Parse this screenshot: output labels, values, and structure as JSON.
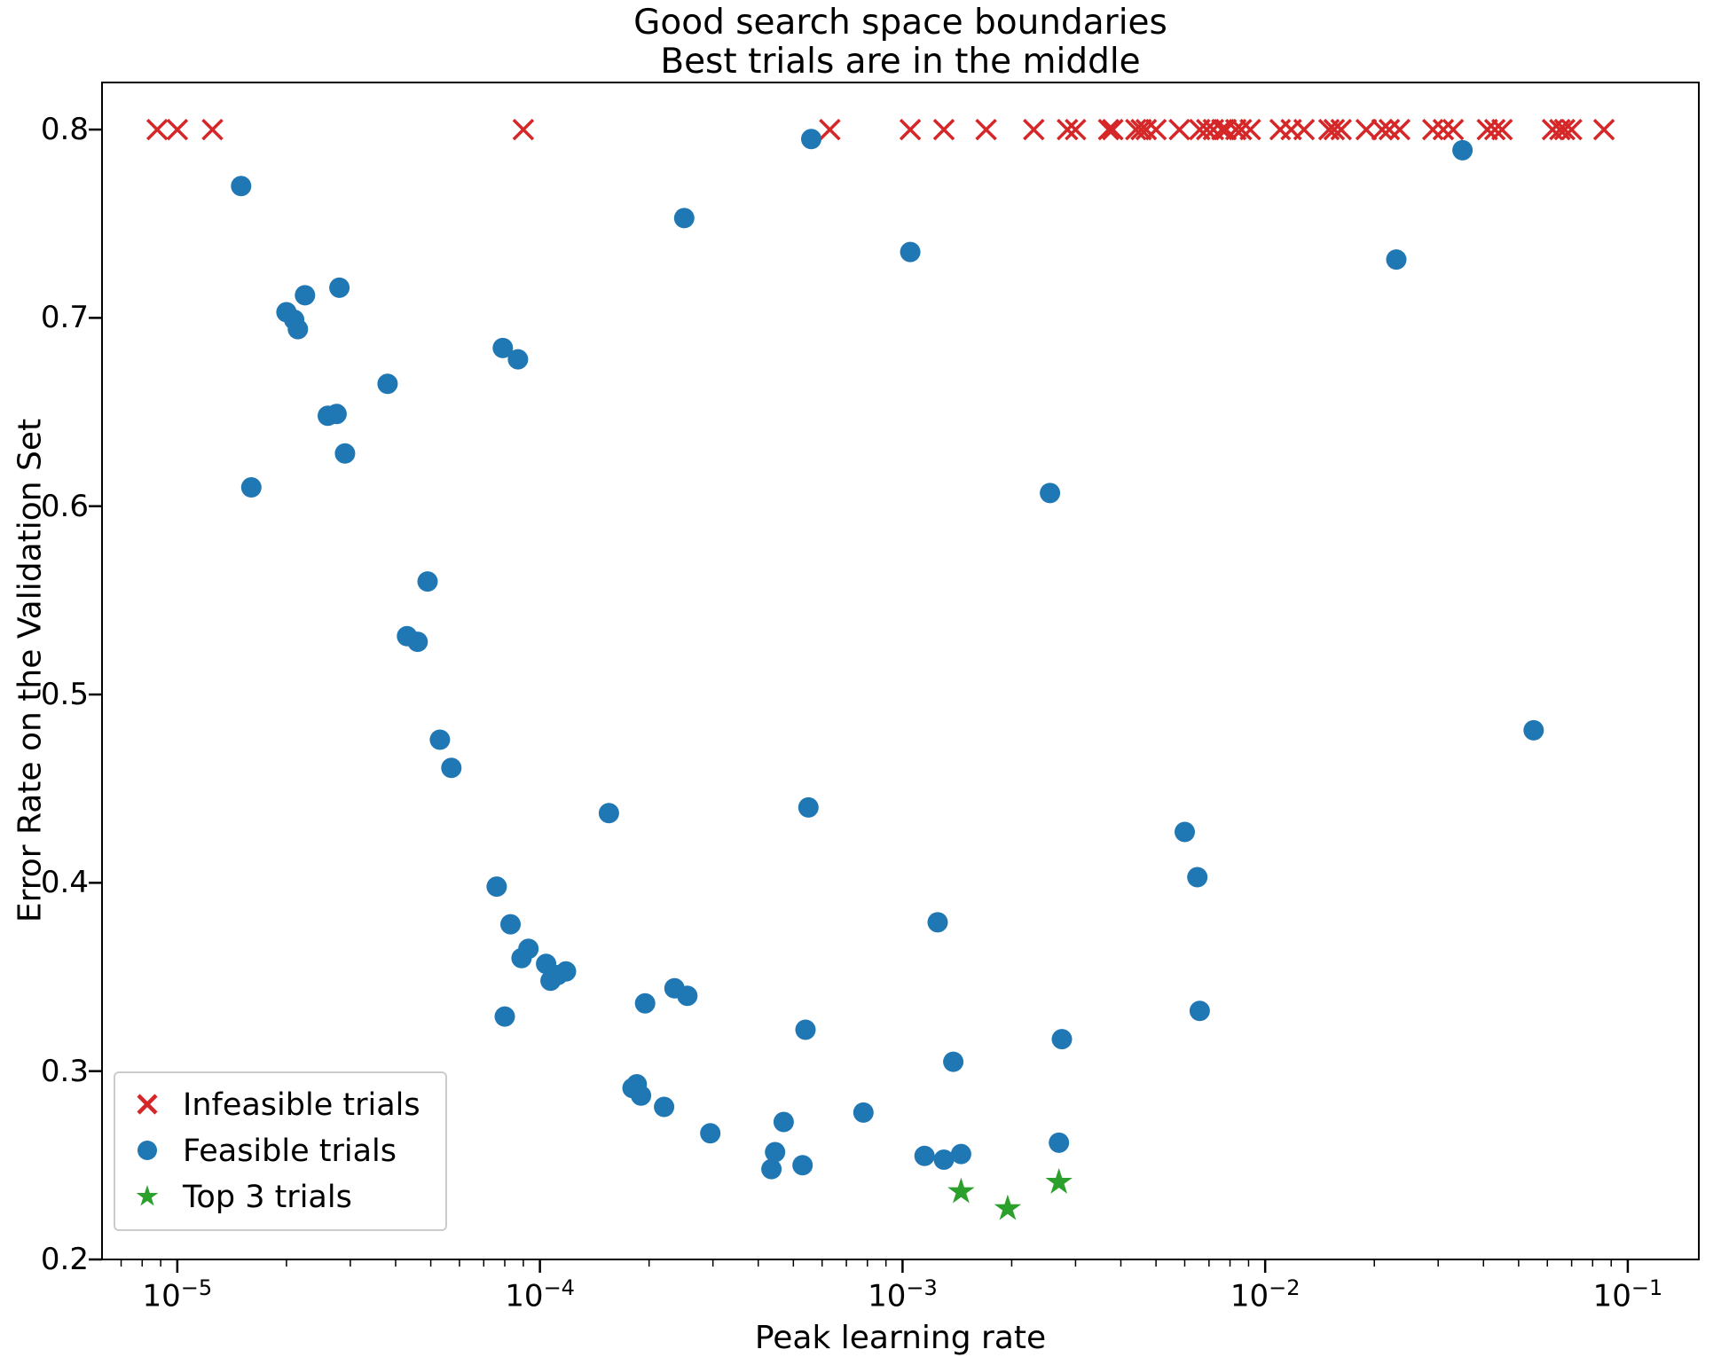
{
  "chart_data": {
    "type": "scatter",
    "title": "Good search space boundaries\nBest trials are in the middle",
    "title_line1": "Good search space boundaries",
    "title_line2": "Best trials are in the middle",
    "xlabel": "Peak learning rate",
    "ylabel": "Error Rate on the Validation Set",
    "x_scale": "log",
    "xlim": [
      6.2e-06,
      0.157
    ],
    "ylim": [
      0.2,
      0.825
    ],
    "x_ticks": [
      1e-05,
      0.0001,
      0.001,
      0.01,
      0.1
    ],
    "x_tick_exponents": [
      -5,
      -4,
      -3,
      -2,
      -1
    ],
    "y_ticks": [
      0.2,
      0.3,
      0.4,
      0.5,
      0.6,
      0.7,
      0.8
    ],
    "grid": false,
    "legend_position": "lower left",
    "series": [
      {
        "name": "Infeasible trials",
        "marker": "x",
        "color": "#d62728",
        "points": [
          [
            8.8e-06,
            0.8
          ],
          [
            1e-05,
            0.8
          ],
          [
            1.25e-05,
            0.8
          ],
          [
            9e-05,
            0.8
          ],
          [
            0.00063,
            0.8
          ],
          [
            0.00105,
            0.8
          ],
          [
            0.0013,
            0.8
          ],
          [
            0.0017,
            0.8
          ],
          [
            0.0023,
            0.8
          ],
          [
            0.00285,
            0.8
          ],
          [
            0.003,
            0.8
          ],
          [
            0.0037,
            0.8
          ],
          [
            0.0038,
            0.8
          ],
          [
            0.0044,
            0.8
          ],
          [
            0.00455,
            0.8
          ],
          [
            0.0047,
            0.8
          ],
          [
            0.005,
            0.8
          ],
          [
            0.0058,
            0.8
          ],
          [
            0.0066,
            0.8
          ],
          [
            0.0069,
            0.8
          ],
          [
            0.0072,
            0.8
          ],
          [
            0.0076,
            0.8
          ],
          [
            0.0078,
            0.8
          ],
          [
            0.0083,
            0.8
          ],
          [
            0.0086,
            0.8
          ],
          [
            0.0091,
            0.8
          ],
          [
            0.011,
            0.8
          ],
          [
            0.0118,
            0.8
          ],
          [
            0.0128,
            0.8
          ],
          [
            0.015,
            0.8
          ],
          [
            0.0155,
            0.8
          ],
          [
            0.0162,
            0.8
          ],
          [
            0.019,
            0.8
          ],
          [
            0.021,
            0.8
          ],
          [
            0.022,
            0.8
          ],
          [
            0.0235,
            0.8
          ],
          [
            0.029,
            0.8
          ],
          [
            0.031,
            0.8
          ],
          [
            0.033,
            0.8
          ],
          [
            0.041,
            0.8
          ],
          [
            0.043,
            0.8
          ],
          [
            0.045,
            0.8
          ],
          [
            0.062,
            0.8
          ],
          [
            0.065,
            0.8
          ],
          [
            0.067,
            0.8
          ],
          [
            0.07,
            0.8
          ],
          [
            0.086,
            0.8
          ]
        ]
      },
      {
        "name": "Feasible trials",
        "marker": "circle",
        "color": "#1f77b4",
        "points": [
          [
            1.5e-05,
            0.77
          ],
          [
            1.6e-05,
            0.61
          ],
          [
            2e-05,
            0.703
          ],
          [
            2.1e-05,
            0.699
          ],
          [
            2.15e-05,
            0.694
          ],
          [
            2.25e-05,
            0.712
          ],
          [
            2.8e-05,
            0.716
          ],
          [
            2.6e-05,
            0.648
          ],
          [
            2.75e-05,
            0.649
          ],
          [
            2.9e-05,
            0.628
          ],
          [
            3.8e-05,
            0.665
          ],
          [
            4.3e-05,
            0.531
          ],
          [
            4.6e-05,
            0.528
          ],
          [
            4.9e-05,
            0.56
          ],
          [
            5.3e-05,
            0.476
          ],
          [
            5.7e-05,
            0.461
          ],
          [
            7.6e-05,
            0.398
          ],
          [
            7.9e-05,
            0.684
          ],
          [
            8.7e-05,
            0.678
          ],
          [
            8e-05,
            0.329
          ],
          [
            8.3e-05,
            0.378
          ],
          [
            8.9e-05,
            0.36
          ],
          [
            9.3e-05,
            0.365
          ],
          [
            0.000104,
            0.357
          ],
          [
            0.000107,
            0.348
          ],
          [
            0.000112,
            0.351
          ],
          [
            0.000118,
            0.353
          ],
          [
            0.000155,
            0.437
          ],
          [
            0.00018,
            0.291
          ],
          [
            0.000185,
            0.293
          ],
          [
            0.00019,
            0.287
          ],
          [
            0.000195,
            0.336
          ],
          [
            0.00022,
            0.281
          ],
          [
            0.000235,
            0.344
          ],
          [
            0.000255,
            0.34
          ],
          [
            0.00025,
            0.753
          ],
          [
            0.000295,
            0.267
          ],
          [
            0.000435,
            0.248
          ],
          [
            0.000445,
            0.257
          ],
          [
            0.00047,
            0.273
          ],
          [
            0.00053,
            0.25
          ],
          [
            0.00054,
            0.322
          ],
          [
            0.00055,
            0.44
          ],
          [
            0.00056,
            0.795
          ],
          [
            0.00078,
            0.278
          ],
          [
            0.00105,
            0.735
          ],
          [
            0.00115,
            0.255
          ],
          [
            0.00125,
            0.379
          ],
          [
            0.0013,
            0.253
          ],
          [
            0.00138,
            0.305
          ],
          [
            0.00145,
            0.256
          ],
          [
            0.00255,
            0.607
          ],
          [
            0.0027,
            0.262
          ],
          [
            0.00275,
            0.317
          ],
          [
            0.006,
            0.427
          ],
          [
            0.0065,
            0.403
          ],
          [
            0.0066,
            0.332
          ],
          [
            0.023,
            0.731
          ],
          [
            0.035,
            0.789
          ],
          [
            0.055,
            0.481
          ]
        ]
      },
      {
        "name": "Top 3 trials",
        "marker": "star",
        "color": "#2ca02c",
        "points": [
          [
            0.00145,
            0.236
          ],
          [
            0.00195,
            0.227
          ],
          [
            0.0027,
            0.241
          ]
        ]
      }
    ]
  }
}
